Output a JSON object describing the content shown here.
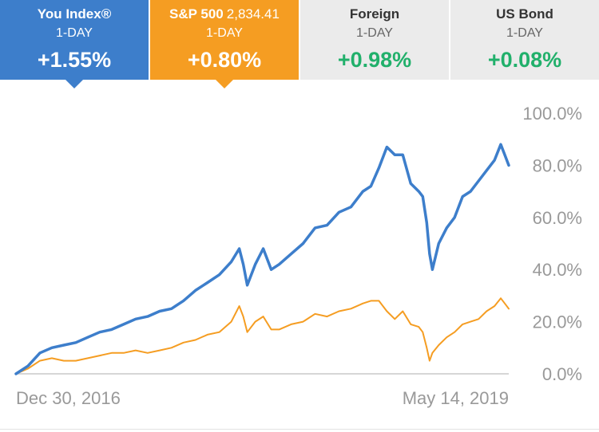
{
  "tabs": [
    {
      "name": "You Index®",
      "price": "",
      "period": "1-DAY",
      "change": "+1.55%",
      "style": "selected",
      "color": "#3d7ecb"
    },
    {
      "name": "S&P 500",
      "price": "2,834.41",
      "period": "1-DAY",
      "change": "+0.80%",
      "style": "selected",
      "color": "#f59d22"
    },
    {
      "name": "Foreign",
      "price": "",
      "period": "1-DAY",
      "change": "+0.98%",
      "style": "plain",
      "color": "#21b06b"
    },
    {
      "name": "US Bond",
      "price": "",
      "period": "1-DAY",
      "change": "+0.08%",
      "style": "plain",
      "color": "#21b06b"
    }
  ],
  "chart_data": {
    "type": "line",
    "x_start_label": "Dec 30, 2016",
    "x_end_label": "May 14, 2019",
    "yticks": [
      "100.0%",
      "80.0%",
      "60.0%",
      "40.0%",
      "20.0%",
      "0.0%"
    ],
    "ytick_values": [
      100,
      80,
      60,
      40,
      20,
      0
    ],
    "ylim": [
      0,
      100
    ],
    "xlim": [
      "2016-12-30",
      "2019-05-14"
    ],
    "series": [
      {
        "key": "you-index",
        "color": "#3d7ecb",
        "points": [
          [
            "2016-12-30",
            0
          ],
          [
            "2017-01-20",
            3
          ],
          [
            "2017-02-10",
            8
          ],
          [
            "2017-03-03",
            10
          ],
          [
            "2017-03-24",
            11
          ],
          [
            "2017-04-14",
            12
          ],
          [
            "2017-05-05",
            14
          ],
          [
            "2017-05-26",
            16
          ],
          [
            "2017-06-16",
            17
          ],
          [
            "2017-07-07",
            19
          ],
          [
            "2017-07-28",
            21
          ],
          [
            "2017-08-18",
            22
          ],
          [
            "2017-09-08",
            24
          ],
          [
            "2017-09-29",
            25
          ],
          [
            "2017-10-20",
            28
          ],
          [
            "2017-11-10",
            32
          ],
          [
            "2017-12-01",
            35
          ],
          [
            "2017-12-22",
            38
          ],
          [
            "2018-01-12",
            43
          ],
          [
            "2018-01-26",
            48
          ],
          [
            "2018-02-02",
            42
          ],
          [
            "2018-02-09",
            34
          ],
          [
            "2018-02-23",
            42
          ],
          [
            "2018-03-09",
            48
          ],
          [
            "2018-03-23",
            40
          ],
          [
            "2018-04-06",
            42
          ],
          [
            "2018-04-27",
            46
          ],
          [
            "2018-05-18",
            50
          ],
          [
            "2018-06-08",
            56
          ],
          [
            "2018-06-29",
            57
          ],
          [
            "2018-07-20",
            62
          ],
          [
            "2018-08-10",
            64
          ],
          [
            "2018-08-31",
            70
          ],
          [
            "2018-09-14",
            72
          ],
          [
            "2018-09-28",
            79
          ],
          [
            "2018-10-12",
            87
          ],
          [
            "2018-10-26",
            84
          ],
          [
            "2018-11-09",
            84
          ],
          [
            "2018-11-23",
            73
          ],
          [
            "2018-12-07",
            70
          ],
          [
            "2018-12-14",
            68
          ],
          [
            "2018-12-21",
            58
          ],
          [
            "2018-12-26",
            46
          ],
          [
            "2018-12-31",
            40
          ],
          [
            "2019-01-11",
            50
          ],
          [
            "2019-01-25",
            56
          ],
          [
            "2019-02-08",
            60
          ],
          [
            "2019-02-22",
            68
          ],
          [
            "2019-03-08",
            70
          ],
          [
            "2019-03-22",
            74
          ],
          [
            "2019-04-05",
            78
          ],
          [
            "2019-04-19",
            82
          ],
          [
            "2019-04-30",
            88
          ],
          [
            "2019-05-07",
            84
          ],
          [
            "2019-05-14",
            80
          ]
        ]
      },
      {
        "key": "sp500",
        "color": "#f59d22",
        "points": [
          [
            "2016-12-30",
            0
          ],
          [
            "2017-01-20",
            2
          ],
          [
            "2017-02-10",
            5
          ],
          [
            "2017-03-03",
            6
          ],
          [
            "2017-03-24",
            5
          ],
          [
            "2017-04-14",
            5
          ],
          [
            "2017-05-05",
            6
          ],
          [
            "2017-05-26",
            7
          ],
          [
            "2017-06-16",
            8
          ],
          [
            "2017-07-07",
            8
          ],
          [
            "2017-07-28",
            9
          ],
          [
            "2017-08-18",
            8
          ],
          [
            "2017-09-08",
            9
          ],
          [
            "2017-09-29",
            10
          ],
          [
            "2017-10-20",
            12
          ],
          [
            "2017-11-10",
            13
          ],
          [
            "2017-12-01",
            15
          ],
          [
            "2017-12-22",
            16
          ],
          [
            "2018-01-12",
            20
          ],
          [
            "2018-01-26",
            26
          ],
          [
            "2018-02-02",
            22
          ],
          [
            "2018-02-09",
            16
          ],
          [
            "2018-02-23",
            20
          ],
          [
            "2018-03-09",
            22
          ],
          [
            "2018-03-23",
            17
          ],
          [
            "2018-04-06",
            17
          ],
          [
            "2018-04-27",
            19
          ],
          [
            "2018-05-18",
            20
          ],
          [
            "2018-06-08",
            23
          ],
          [
            "2018-06-29",
            22
          ],
          [
            "2018-07-20",
            24
          ],
          [
            "2018-08-10",
            25
          ],
          [
            "2018-08-31",
            27
          ],
          [
            "2018-09-14",
            28
          ],
          [
            "2018-09-28",
            28
          ],
          [
            "2018-10-12",
            24
          ],
          [
            "2018-10-26",
            21
          ],
          [
            "2018-11-09",
            24
          ],
          [
            "2018-11-23",
            19
          ],
          [
            "2018-12-07",
            18
          ],
          [
            "2018-12-14",
            16
          ],
          [
            "2018-12-21",
            10
          ],
          [
            "2018-12-26",
            5
          ],
          [
            "2018-12-31",
            8
          ],
          [
            "2019-01-11",
            11
          ],
          [
            "2019-01-25",
            14
          ],
          [
            "2019-02-08",
            16
          ],
          [
            "2019-02-22",
            19
          ],
          [
            "2019-03-08",
            20
          ],
          [
            "2019-03-22",
            21
          ],
          [
            "2019-04-05",
            24
          ],
          [
            "2019-04-19",
            26
          ],
          [
            "2019-04-30",
            29
          ],
          [
            "2019-05-07",
            27
          ],
          [
            "2019-05-14",
            25
          ]
        ]
      }
    ]
  }
}
